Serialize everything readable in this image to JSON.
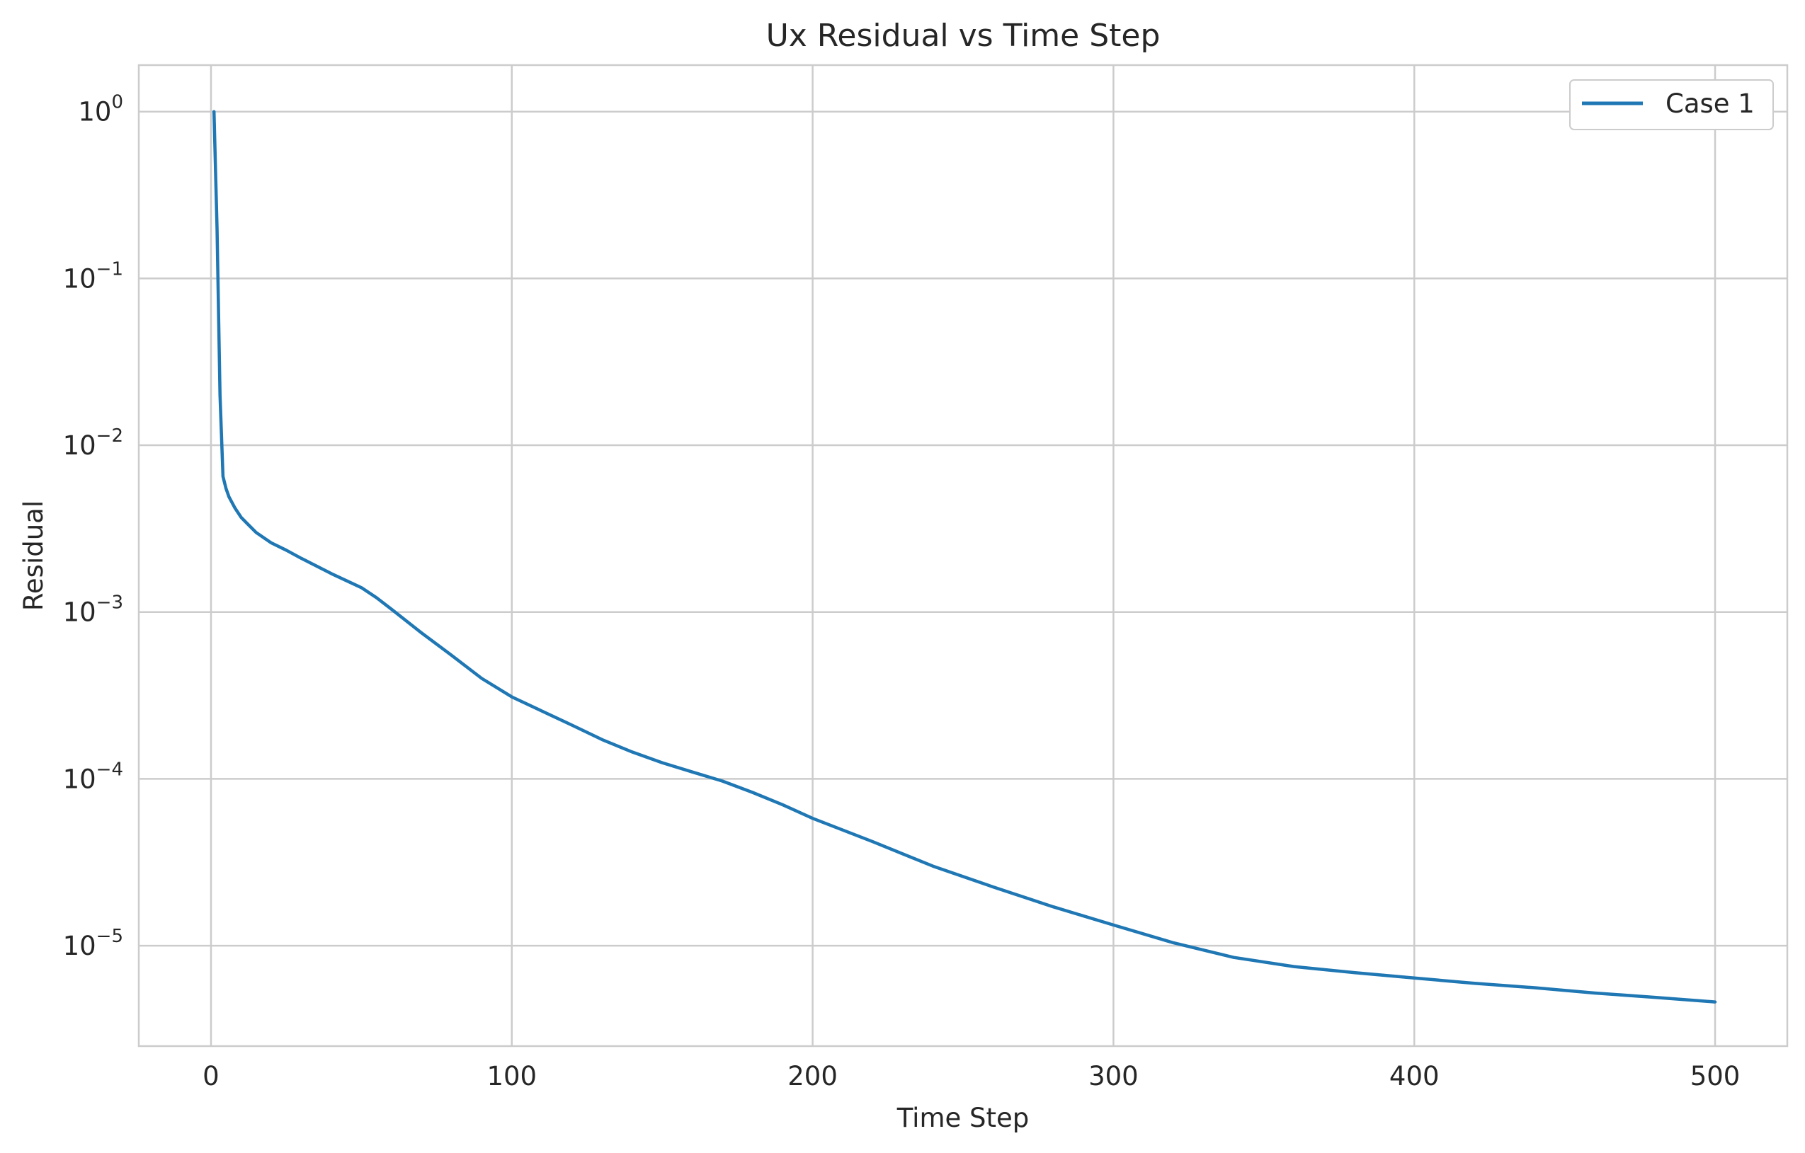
{
  "chart_data": {
    "type": "line",
    "title": "Ux Residual vs Time Step",
    "xlabel": "Time Step",
    "ylabel": "Residual",
    "xlim": [
      -24,
      524
    ],
    "ylim": [
      2.5e-06,
      1.9
    ],
    "yscale": "log",
    "grid": true,
    "legend_position": "top-right",
    "x_ticks": [
      0,
      100,
      200,
      300,
      400,
      500
    ],
    "x_tick_labels": [
      "0",
      "100",
      "200",
      "300",
      "400",
      "500"
    ],
    "y_ticks": [
      1,
      0.1,
      0.01,
      0.001,
      0.0001,
      1e-05
    ],
    "y_tick_labels": [
      {
        "base": "10",
        "exp": "0"
      },
      {
        "base": "10",
        "exp": "−1"
      },
      {
        "base": "10",
        "exp": "−2"
      },
      {
        "base": "10",
        "exp": "−3"
      },
      {
        "base": "10",
        "exp": "−4"
      },
      {
        "base": "10",
        "exp": "−5"
      }
    ],
    "colors": {
      "line": "#1f77b4",
      "grid": "#cccccc",
      "axes_edge": "#cccccc",
      "text": "#262626"
    },
    "series": [
      {
        "name": "Case 1",
        "x": [
          1,
          2,
          3,
          4,
          5,
          6,
          8,
          10,
          12,
          15,
          20,
          25,
          30,
          40,
          50,
          55,
          60,
          70,
          80,
          90,
          100,
          110,
          120,
          130,
          140,
          150,
          160,
          170,
          180,
          190,
          200,
          220,
          240,
          260,
          280,
          300,
          320,
          340,
          360,
          380,
          400,
          420,
          440,
          460,
          480,
          500
        ],
        "y": [
          1.0,
          0.2,
          0.02,
          0.0065,
          0.0055,
          0.0049,
          0.0042,
          0.0037,
          0.0034,
          0.003,
          0.0026,
          0.00235,
          0.0021,
          0.0017,
          0.0014,
          0.00122,
          0.00104,
          0.00075,
          0.00055,
          0.0004,
          0.00031,
          0.000255,
          0.00021,
          0.000172,
          0.000145,
          0.000125,
          0.00011,
          9.7e-05,
          8.3e-05,
          7e-05,
          5.8e-05,
          4.2e-05,
          3e-05,
          2.25e-05,
          1.71e-05,
          1.33e-05,
          1.04e-05,
          8.5e-06,
          7.5e-06,
          6.9e-06,
          6.4e-06,
          5.95e-06,
          5.6e-06,
          5.2e-06,
          4.9e-06,
          4.6e-06
        ]
      }
    ]
  }
}
